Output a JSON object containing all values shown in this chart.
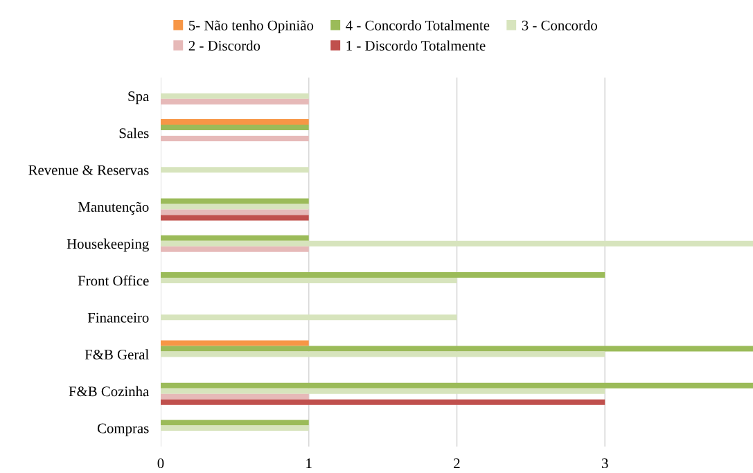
{
  "chart_data": {
    "type": "bar",
    "orientation": "horizontal",
    "categories": [
      "Spa",
      "Sales",
      "Revenue & Reservas",
      "Manutenção",
      "Housekeeping",
      "Front Office",
      "Financeiro",
      "F&B Geral",
      "F&B Cozinha",
      "Compras"
    ],
    "series": [
      {
        "name": "5- Não tenho Opinião",
        "color": "#f79646",
        "values": [
          null,
          1,
          null,
          null,
          null,
          null,
          null,
          1,
          null,
          null
        ]
      },
      {
        "name": "4 - Concordo Totalmente",
        "color": "#9bbb59",
        "values": [
          null,
          1,
          null,
          1,
          1,
          3,
          null,
          4,
          4,
          1
        ]
      },
      {
        "name": "3 - Concordo",
        "color": "#d7e4bd",
        "values": [
          1,
          null,
          1,
          1,
          4,
          2,
          2,
          3,
          3,
          1
        ]
      },
      {
        "name": "2 - Discordo",
        "color": "#e6b9b8",
        "values": [
          1,
          1,
          null,
          1,
          1,
          null,
          null,
          null,
          1,
          null
        ]
      },
      {
        "name": "1 - Discordo Totalmente",
        "color": "#c0504d",
        "values": [
          null,
          null,
          null,
          1,
          null,
          null,
          null,
          null,
          3,
          null
        ]
      }
    ],
    "xlim": [
      0,
      4
    ],
    "xticks": [
      0,
      1,
      2,
      3
    ],
    "grid": "x",
    "legend": "top"
  }
}
